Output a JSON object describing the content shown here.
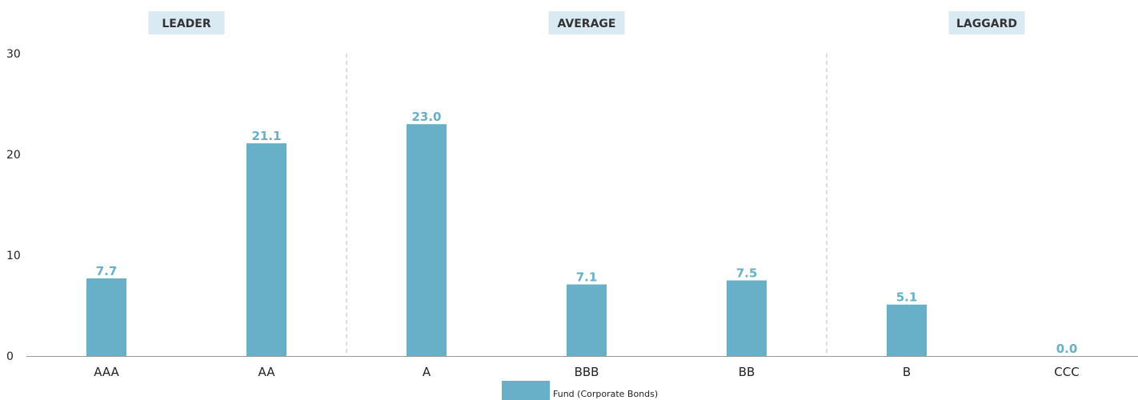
{
  "chart_data": {
    "type": "bar",
    "title": "",
    "xlabel": "",
    "ylabel": "",
    "ylim": [
      0,
      30
    ],
    "yticks": [
      0,
      10,
      20,
      30
    ],
    "grid": false,
    "legend_position": "bottom",
    "categories": [
      "AAA",
      "AA",
      "A",
      "BBB",
      "BB",
      "B",
      "CCC"
    ],
    "series": [
      {
        "name": "Fund (Corporate Bonds)",
        "values": [
          7.7,
          21.1,
          23.0,
          7.1,
          7.5,
          5.1,
          0.0
        ],
        "data_labels": [
          "7.7",
          "21.1",
          "23.0",
          "7.1",
          "7.5",
          "5.1",
          "0.0"
        ]
      }
    ],
    "groups": [
      {
        "label": "LEADER",
        "categories": [
          "AAA",
          "AA"
        ]
      },
      {
        "label": "AVERAGE",
        "categories": [
          "A",
          "BBB",
          "BB"
        ]
      },
      {
        "label": "LAGGARD",
        "categories": [
          "B",
          "CCC"
        ]
      }
    ]
  },
  "colors": {
    "bar": "#67b0c7",
    "data_label": "#67b0c7",
    "group_badge_bg": "#d9eaf2",
    "axis": "#999999",
    "divider": "#bbbbbb"
  }
}
